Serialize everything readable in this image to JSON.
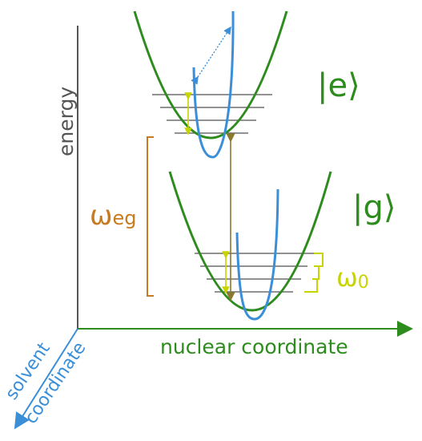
{
  "labels": {
    "energy": "energy",
    "nuclear_coordinate": "nuclear coordinate",
    "solvent_line1": "solvent",
    "solvent_line2": "coordinate",
    "excited_state": "|e⟩",
    "ground_state": "|g⟩",
    "omega_eg_symbol": "ω",
    "omega_eg_sub": "eg",
    "omega_0_symbol": "ω",
    "omega_0_sub": "0"
  },
  "colors": {
    "axis_gray": "#555555",
    "green": "#2e8b1e",
    "blue": "#3a8fd8",
    "orange": "#c87a1e",
    "lime": "#c8d400",
    "level_gray": "#6f6f6f",
    "olive": "#8a7a2e"
  }
}
